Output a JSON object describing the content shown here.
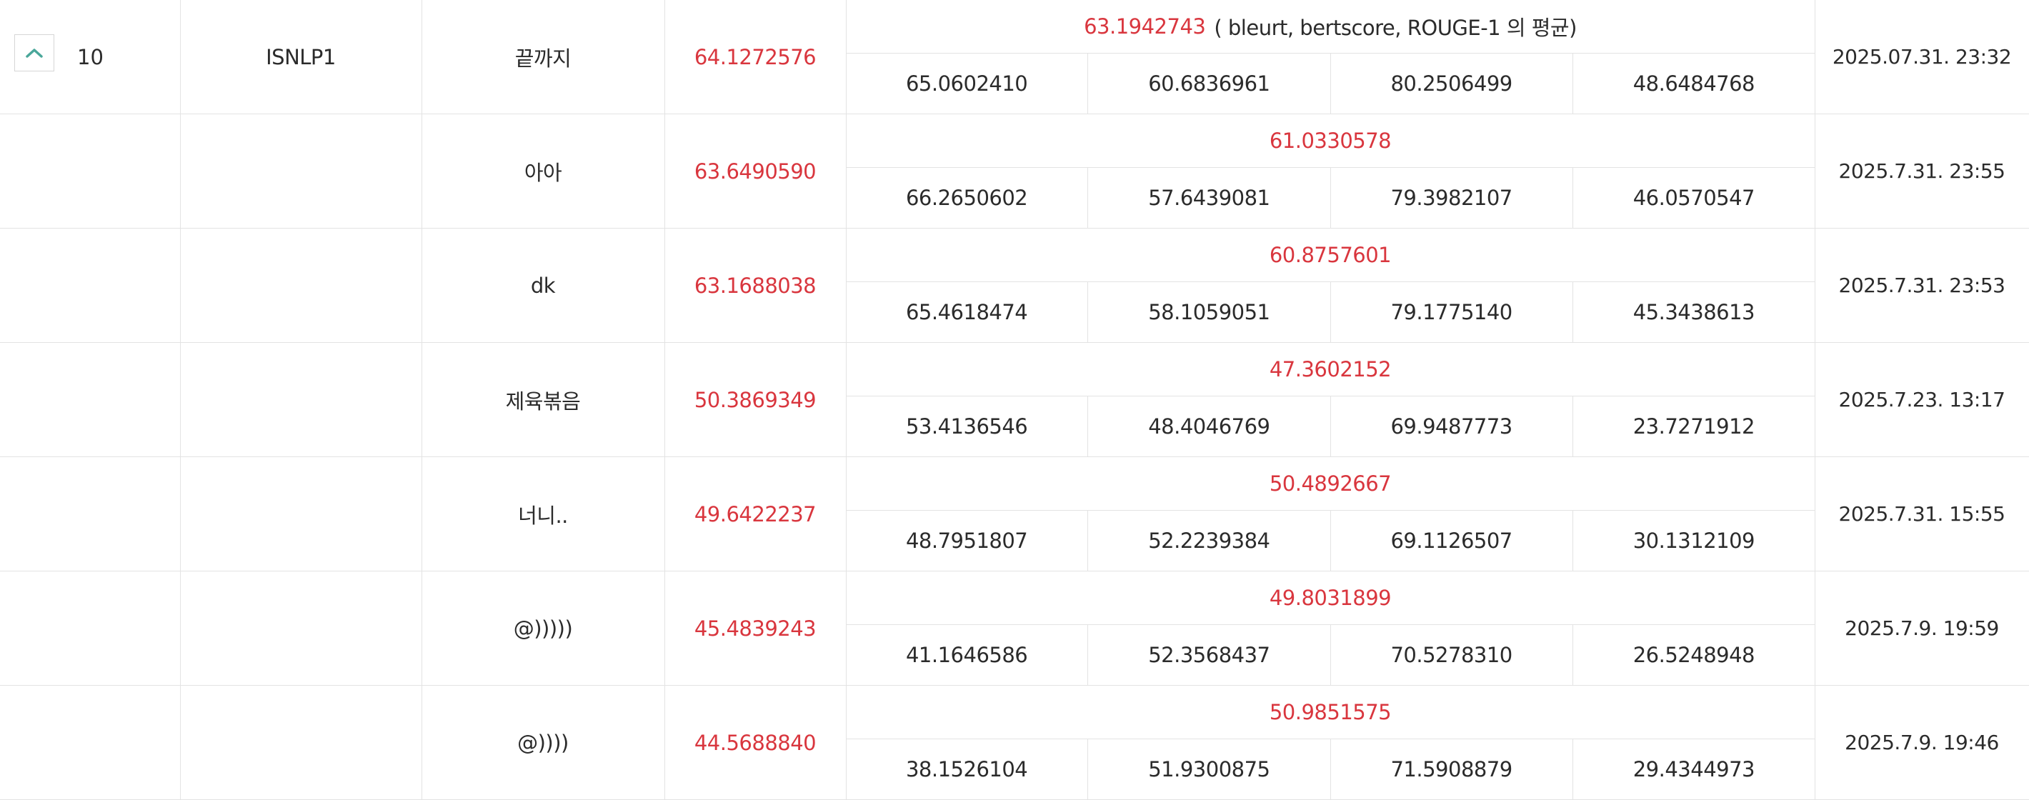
{
  "leaderboard": {
    "group": {
      "rank": "10",
      "team": "ISNLP1",
      "collapse_icon": "chevron-up-icon",
      "accent_color": "#4aa79a"
    },
    "metric_note": "( bleurt, bertscore, ROUGE-1 의 평균)",
    "score_color": "#d9363e",
    "rows": [
      {
        "name": "끝까지",
        "score": "64.1272576",
        "avg": "63.1942743",
        "metrics": [
          "65.0602410",
          "60.6836961",
          "80.2506499",
          "48.6484768"
        ],
        "date": "2025.07.31. 23:32"
      },
      {
        "name": "아아",
        "score": "63.6490590",
        "avg": "61.0330578",
        "metrics": [
          "66.2650602",
          "57.6439081",
          "79.3982107",
          "46.0570547"
        ],
        "date": "2025.7.31. 23:55"
      },
      {
        "name": "dk",
        "score": "63.1688038",
        "avg": "60.8757601",
        "metrics": [
          "65.4618474",
          "58.1059051",
          "79.1775140",
          "45.3438613"
        ],
        "date": "2025.7.31. 23:53"
      },
      {
        "name": "제육볶음",
        "score": "50.3869349",
        "avg": "47.3602152",
        "metrics": [
          "53.4136546",
          "48.4046769",
          "69.9487773",
          "23.7271912"
        ],
        "date": "2025.7.23. 13:17"
      },
      {
        "name": "너니..",
        "score": "49.6422237",
        "avg": "50.4892667",
        "metrics": [
          "48.7951807",
          "52.2239384",
          "69.1126507",
          "30.1312109"
        ],
        "date": "2025.7.31. 15:55"
      },
      {
        "name": "@)))))",
        "score": "45.4839243",
        "avg": "49.8031899",
        "metrics": [
          "41.1646586",
          "52.3568437",
          "70.5278310",
          "26.5248948"
        ],
        "date": "2025.7.9. 19:59"
      },
      {
        "name": "@))))",
        "score": "44.5688840",
        "avg": "50.9851575",
        "metrics": [
          "38.1526104",
          "51.9300875",
          "71.5908879",
          "29.4344973"
        ],
        "date": "2025.7.9. 19:46"
      }
    ]
  }
}
